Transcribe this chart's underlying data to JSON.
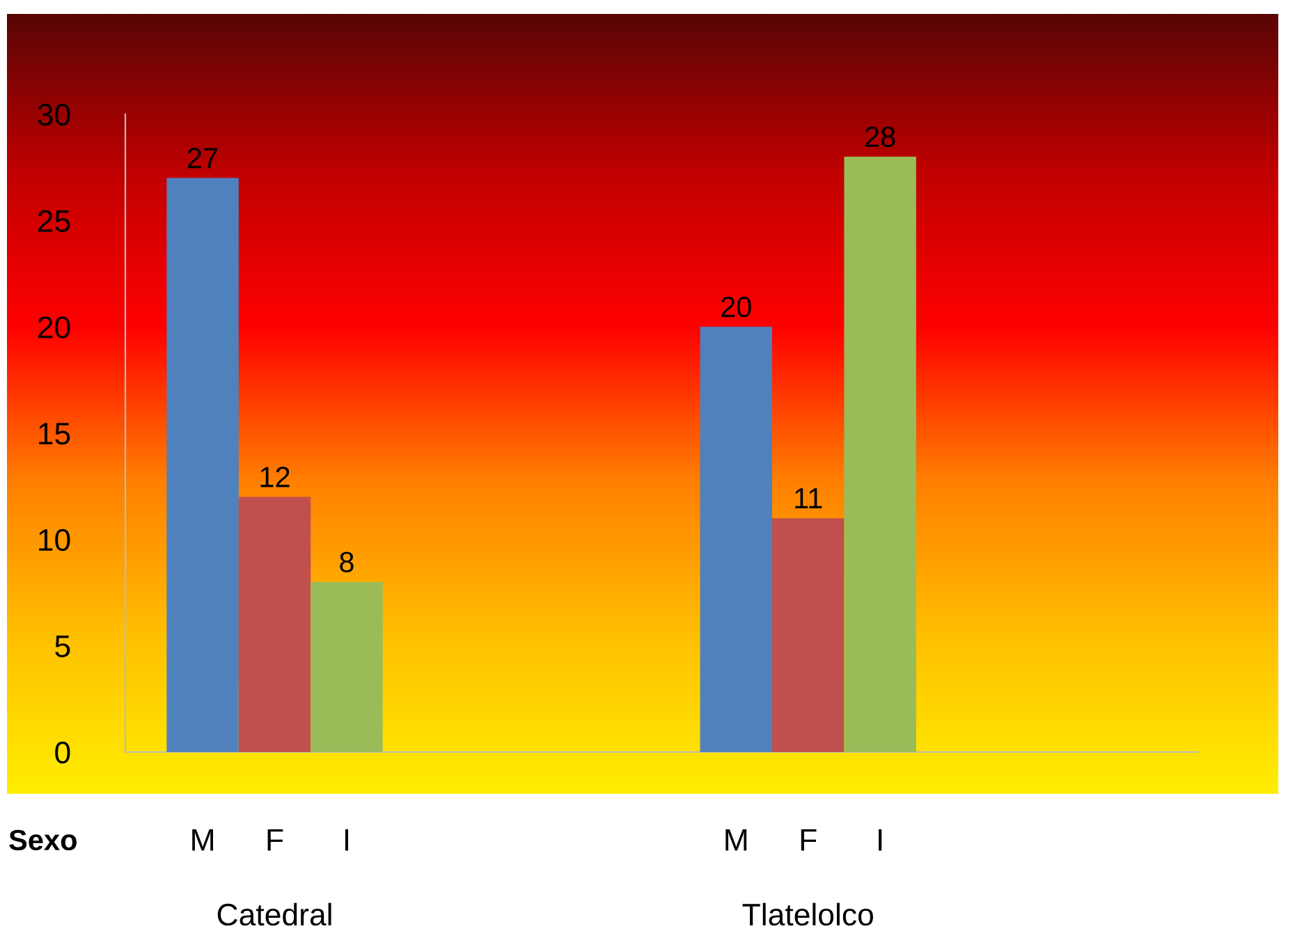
{
  "chart_data": {
    "type": "bar",
    "categories": [
      "Catedral",
      "Tlatelolco"
    ],
    "series": [
      {
        "name": "M",
        "color": "#4f81bd",
        "values": [
          27,
          20
        ]
      },
      {
        "name": "F",
        "color": "#c0504d",
        "values": [
          12,
          11
        ]
      },
      {
        "name": "I",
        "color": "#9bbb59",
        "values": [
          8,
          28
        ]
      }
    ],
    "ylim": [
      0,
      30
    ],
    "yticks": [
      0,
      5,
      10,
      15,
      20,
      25,
      30
    ],
    "data_labels": true,
    "grid": false,
    "legend": false,
    "annotations": [
      "Sexo"
    ]
  }
}
